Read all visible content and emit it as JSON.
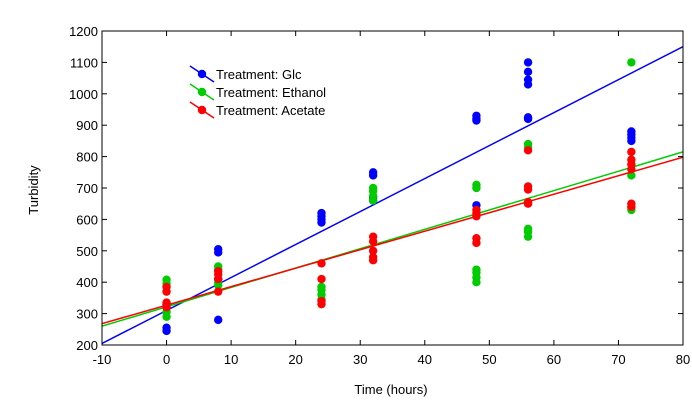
{
  "chart_data": {
    "type": "scatter",
    "title": "",
    "xlabel": "Time (hours)",
    "ylabel": "Turbidity",
    "xlim": [
      -10,
      80
    ],
    "ylim": [
      200,
      1200
    ],
    "xticks": [
      -10,
      0,
      10,
      20,
      30,
      40,
      50,
      60,
      70,
      80
    ],
    "yticks": [
      200,
      300,
      400,
      500,
      600,
      700,
      800,
      900,
      1000,
      1100,
      1200
    ],
    "grid": false,
    "legend_position": "top-left",
    "series": [
      {
        "name": "Treatment: Glc",
        "color": "#0000ff",
        "points": [
          [
            0,
            245
          ],
          [
            0,
            255
          ],
          [
            0,
            330
          ],
          [
            0,
            320
          ],
          [
            8,
            280
          ],
          [
            8,
            495
          ],
          [
            8,
            505
          ],
          [
            8,
            410
          ],
          [
            24,
            600
          ],
          [
            24,
            610
          ],
          [
            24,
            620
          ],
          [
            24,
            590
          ],
          [
            32,
            660
          ],
          [
            32,
            670
          ],
          [
            32,
            740
          ],
          [
            32,
            750
          ],
          [
            48,
            915
          ],
          [
            48,
            920
          ],
          [
            48,
            930
          ],
          [
            48,
            645
          ],
          [
            56,
            920
          ],
          [
            56,
            925
          ],
          [
            56,
            1030
          ],
          [
            56,
            1045
          ],
          [
            56,
            1070
          ],
          [
            56,
            1100
          ],
          [
            72,
            850
          ],
          [
            72,
            860
          ],
          [
            72,
            870
          ],
          [
            72,
            880
          ]
        ],
        "fit": [
          [
            -10,
            205
          ],
          [
            80,
            1150
          ]
        ]
      },
      {
        "name": "Treatment: Ethanol",
        "color": "#00cc00",
        "points": [
          [
            0,
            290
          ],
          [
            0,
            305
          ],
          [
            0,
            395
          ],
          [
            0,
            408
          ],
          [
            8,
            390
          ],
          [
            8,
            400
          ],
          [
            8,
            440
          ],
          [
            8,
            450
          ],
          [
            24,
            345
          ],
          [
            24,
            360
          ],
          [
            24,
            375
          ],
          [
            24,
            385
          ],
          [
            32,
            660
          ],
          [
            32,
            675
          ],
          [
            32,
            690
          ],
          [
            32,
            700
          ],
          [
            48,
            400
          ],
          [
            48,
            415
          ],
          [
            48,
            430
          ],
          [
            48,
            440
          ],
          [
            48,
            700
          ],
          [
            48,
            710
          ],
          [
            56,
            545
          ],
          [
            56,
            560
          ],
          [
            56,
            570
          ],
          [
            56,
            830
          ],
          [
            56,
            840
          ],
          [
            72,
            630
          ],
          [
            72,
            640
          ],
          [
            72,
            740
          ],
          [
            72,
            1100
          ]
        ],
        "fit": [
          [
            -10,
            260
          ],
          [
            80,
            815
          ]
        ]
      },
      {
        "name": "Treatment: Acetate",
        "color": "#ff0000",
        "points": [
          [
            0,
            320
          ],
          [
            0,
            335
          ],
          [
            0,
            370
          ],
          [
            0,
            385
          ],
          [
            8,
            370
          ],
          [
            8,
            410
          ],
          [
            8,
            425
          ],
          [
            8,
            435
          ],
          [
            24,
            330
          ],
          [
            24,
            340
          ],
          [
            24,
            410
          ],
          [
            24,
            460
          ],
          [
            32,
            470
          ],
          [
            32,
            480
          ],
          [
            32,
            500
          ],
          [
            32,
            530
          ],
          [
            32,
            545
          ],
          [
            48,
            525
          ],
          [
            48,
            540
          ],
          [
            48,
            610
          ],
          [
            48,
            620
          ],
          [
            48,
            630
          ],
          [
            56,
            650
          ],
          [
            56,
            655
          ],
          [
            56,
            695
          ],
          [
            56,
            705
          ],
          [
            56,
            820
          ],
          [
            72,
            640
          ],
          [
            72,
            650
          ],
          [
            72,
            760
          ],
          [
            72,
            775
          ],
          [
            72,
            790
          ],
          [
            72,
            815
          ]
        ],
        "fit": [
          [
            -10,
            268
          ],
          [
            80,
            798
          ]
        ]
      }
    ]
  }
}
